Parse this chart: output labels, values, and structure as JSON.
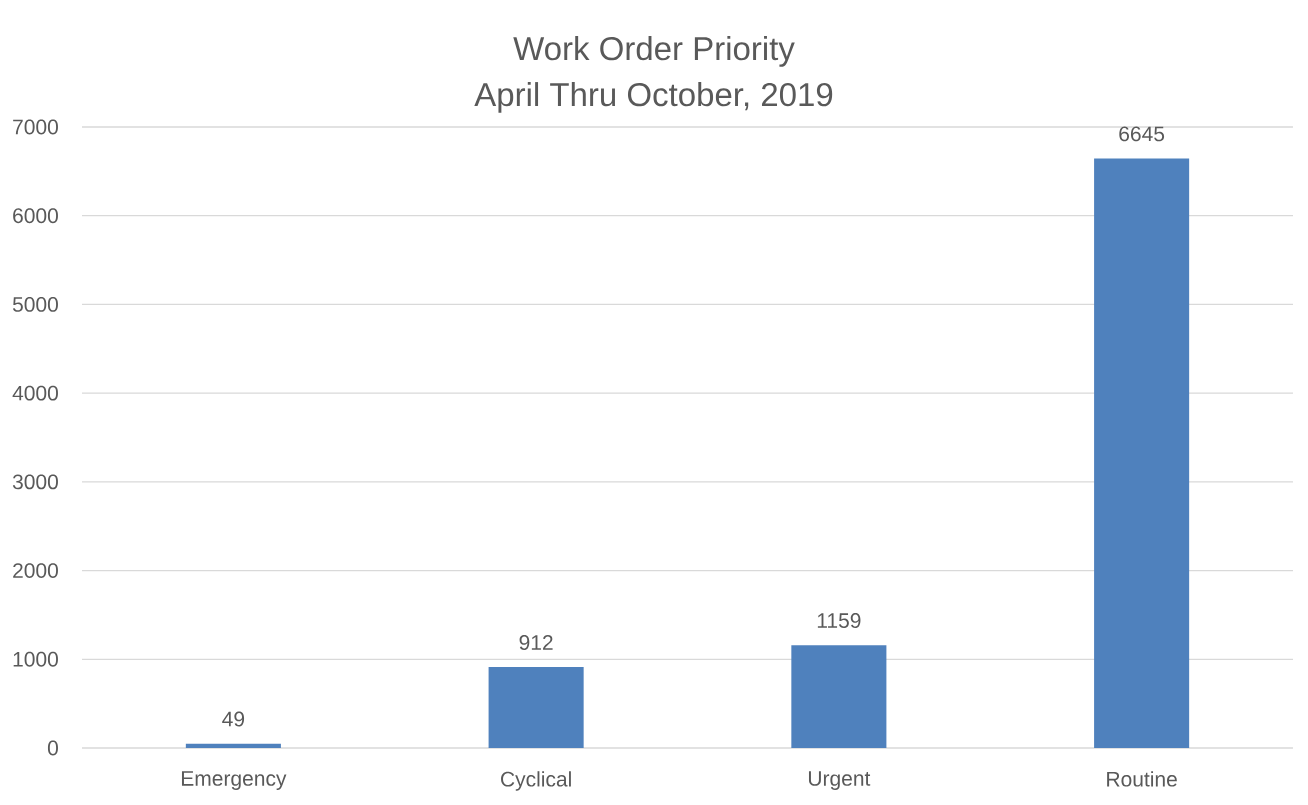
{
  "chart_data": {
    "type": "bar",
    "title": "Work Order Priority",
    "subtitle": "April Thru October, 2019",
    "categories": [
      "Emergency",
      "Cyclical",
      "Urgent",
      "Routine"
    ],
    "values": [
      49,
      912,
      1159,
      6645
    ],
    "color": "#4f81bd",
    "ylim": [
      0,
      7000
    ],
    "yticks": [
      0,
      1000,
      2000,
      3000,
      4000,
      5000,
      6000,
      7000
    ],
    "grid": "y",
    "data_labels": true
  }
}
